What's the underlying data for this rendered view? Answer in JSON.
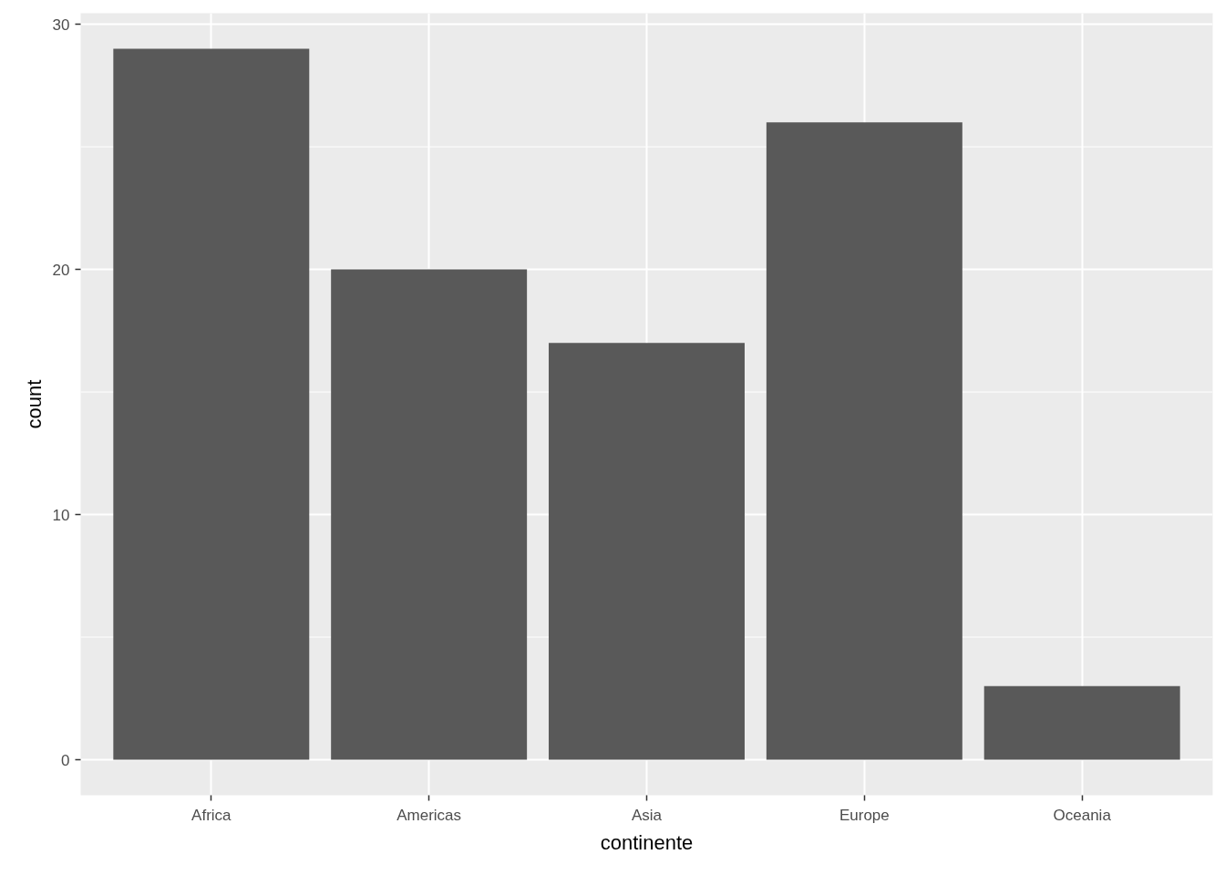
{
  "chart_data": {
    "type": "bar",
    "xlabel": "continente",
    "ylabel": "count",
    "categories": [
      "Africa",
      "Americas",
      "Asia",
      "Europe",
      "Oceania"
    ],
    "values": [
      29,
      20,
      17,
      26,
      3
    ],
    "color": "#595959",
    "ylim": [
      -1.45,
      30.45
    ],
    "yticks": [
      0,
      10,
      20,
      30
    ],
    "grid": true
  }
}
